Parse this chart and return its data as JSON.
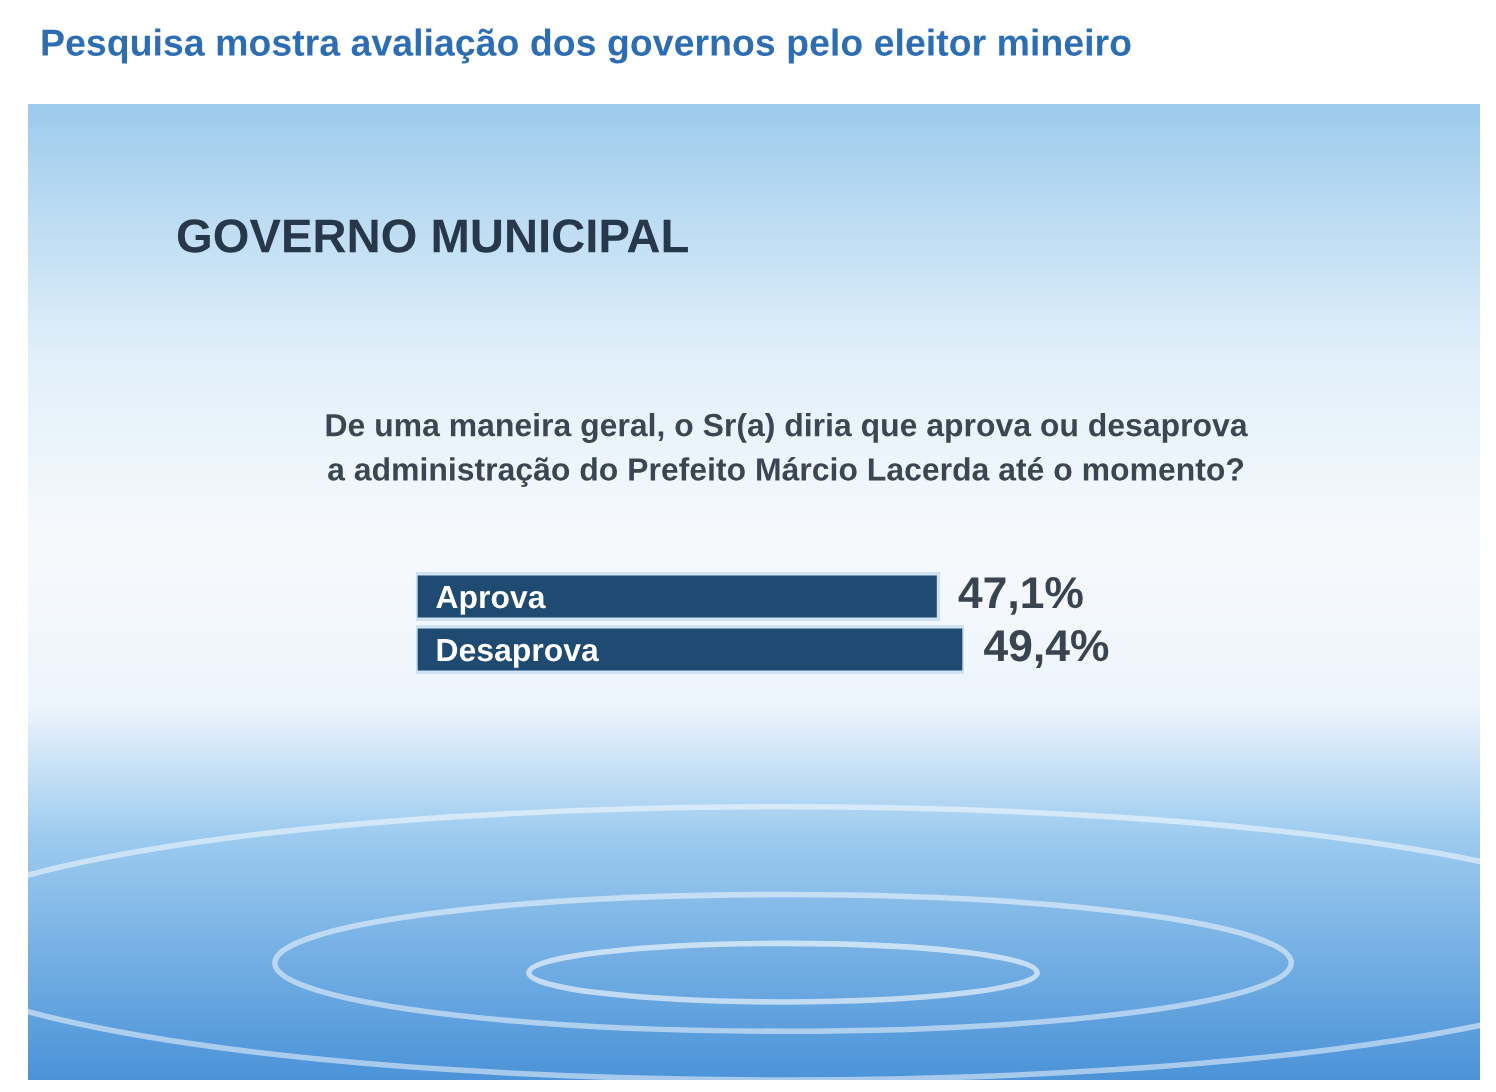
{
  "chart_data": {
    "type": "bar",
    "orientation": "horizontal",
    "title": "Pesquisa mostra avaliação dos governos pelo eleitor mineiro",
    "subtitle": "GOVERNO MUNICIPAL",
    "annotations": [
      "De uma maneira geral, o Sr(a) diria que aprova ou desaprova\na administração do Prefeito Márcio Lacerda até o momento?"
    ],
    "categories": [
      "Aprova",
      "Desaprova"
    ],
    "values": [
      47.1,
      49.4
    ],
    "value_labels": [
      "47,1%",
      "49,4%"
    ],
    "color": "#1f4b72",
    "tick_labels": "y"
  }
}
